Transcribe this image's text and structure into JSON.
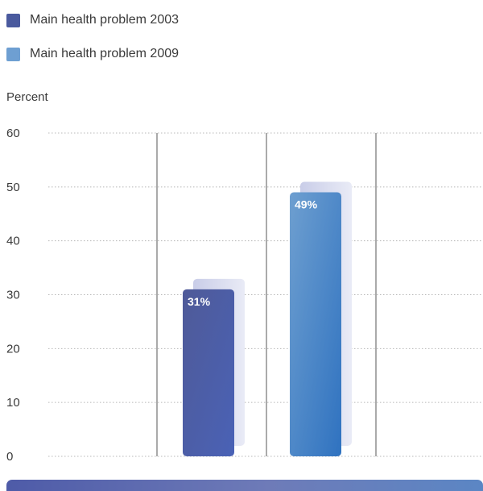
{
  "legend": [
    {
      "label": "Main health problem 2003",
      "color": "#4a5a9e"
    },
    {
      "label": "Main health problem 2009",
      "color": "#6e9fd2"
    }
  ],
  "chart_data": {
    "type": "bar",
    "title": "",
    "ylabel": "Percent",
    "xlabel": "",
    "ylim": [
      0,
      60
    ],
    "yticks": [
      0,
      10,
      20,
      30,
      40,
      50,
      60
    ],
    "grid": true,
    "legend_position": "top-left",
    "series": [
      {
        "name": "Main health problem 2003",
        "values": [
          31
        ],
        "label": "31%",
        "color": "#4a5a9e"
      },
      {
        "name": "Main health problem 2009",
        "values": [
          49
        ],
        "label": "49%",
        "color": "#4a86c8"
      }
    ]
  }
}
